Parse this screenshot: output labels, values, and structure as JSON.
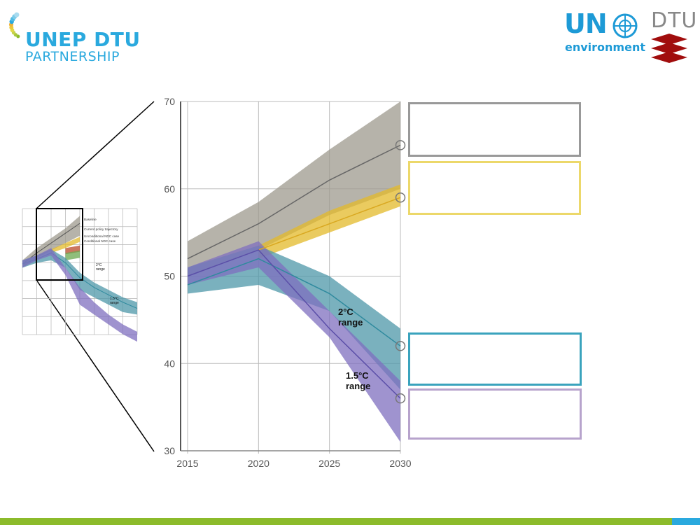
{
  "logos": {
    "unep_line1": "UNEP DTU",
    "unep_line2": "PARTNERSHIP",
    "un_text": "UN",
    "un_sub": "environment",
    "dtu_text": "DTU"
  },
  "colors": {
    "baseline": "#9e9a8e",
    "current_policy": "#e3b92a",
    "two_c": "#4e97a8",
    "one_five_c": "#7f6fbf",
    "accent_green": "#8cbb2b",
    "accent_blue": "#2aa9de"
  },
  "chart_data": [
    {
      "type": "area",
      "x": [
        2015,
        2020,
        2025,
        2030
      ],
      "xlim": [
        2015,
        2030
      ],
      "ylim": [
        30,
        70
      ],
      "xticks": [
        2015,
        2020,
        2025,
        2030
      ],
      "yticks": [
        30,
        40,
        50,
        60,
        70
      ],
      "grid": true,
      "series": [
        {
          "key": "baseline",
          "values": [
            52,
            56,
            61,
            65
          ],
          "low": [
            50,
            53,
            57,
            60
          ],
          "high": [
            54,
            58.5,
            64.5,
            70
          ]
        },
        {
          "key": "current_policy",
          "values": [
            null,
            53,
            56,
            59
          ],
          "low": [
            null,
            52,
            55,
            58
          ],
          "high": [
            null,
            53.5,
            57.5,
            60.5
          ]
        },
        {
          "key": "two_c",
          "values": [
            49,
            52,
            48,
            42
          ],
          "low": [
            48,
            49,
            46,
            37
          ],
          "high": [
            51,
            53.5,
            50,
            44
          ]
        },
        {
          "key": "one_five_c",
          "values": [
            50,
            53,
            44,
            36
          ],
          "low": [
            49,
            51,
            43,
            31
          ],
          "high": [
            51,
            54,
            46,
            38
          ]
        }
      ],
      "annotations": [
        {
          "line1": "2°C",
          "line2": "range"
        },
        {
          "line1": "1.5°C",
          "line2": "range"
        }
      ],
      "legend_boxes": [
        "baseline",
        "current_policy",
        "two_c",
        "one_five_c"
      ]
    },
    {
      "type": "area",
      "labels": {
        "baseline": "Baseline",
        "current_policy": "Current policy trajectory",
        "unconditional": "Unconditional NDC case",
        "conditional": "Conditional NDC case",
        "two_c_1": "2°C",
        "two_c_2": "range",
        "one_five_1": "1.5°C",
        "one_five_2": "range"
      }
    }
  ]
}
